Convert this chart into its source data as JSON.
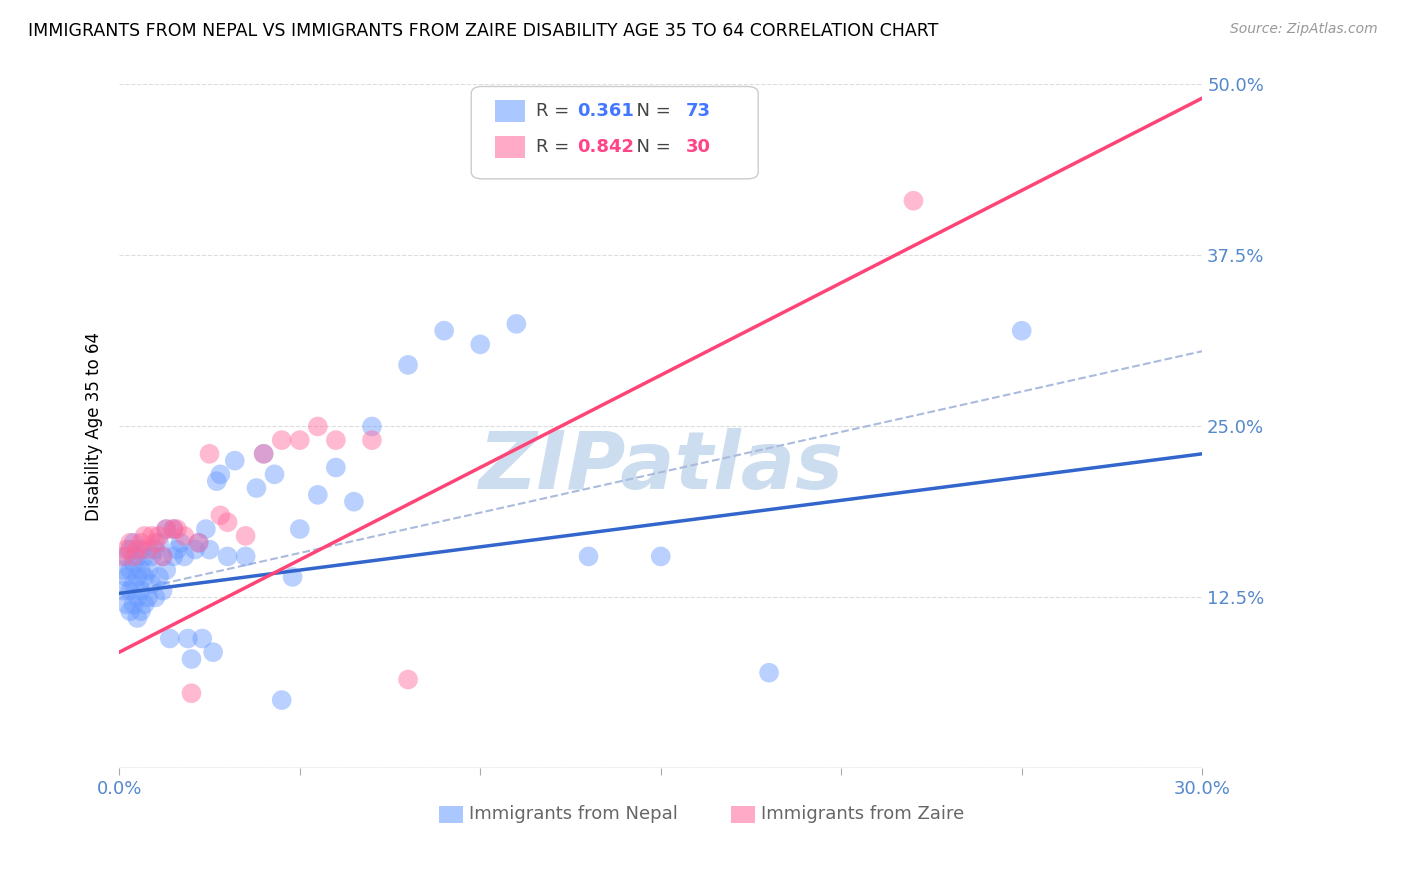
{
  "title": "IMMIGRANTS FROM NEPAL VS IMMIGRANTS FROM ZAIRE DISABILITY AGE 35 TO 64 CORRELATION CHART",
  "source": "Source: ZipAtlas.com",
  "ylabel": "Disability Age 35 to 64",
  "x_axis_label_nepal": "Immigrants from Nepal",
  "x_axis_label_zaire": "Immigrants from Zaire",
  "x_ticks": [
    0.0,
    0.05,
    0.1,
    0.15,
    0.2,
    0.25,
    0.3
  ],
  "x_tick_labels": [
    "0.0%",
    "",
    "",
    "",
    "",
    "",
    "30.0%"
  ],
  "y_ticks": [
    0.0,
    0.125,
    0.25,
    0.375,
    0.5
  ],
  "y_tick_labels_right": [
    "",
    "12.5%",
    "25.0%",
    "37.5%",
    "50.0%"
  ],
  "xlim": [
    0.0,
    0.3
  ],
  "ylim": [
    0.0,
    0.5
  ],
  "nepal_R": 0.361,
  "nepal_N": 73,
  "zaire_R": 0.842,
  "zaire_N": 30,
  "nepal_color": "#6699ff",
  "zaire_color": "#ff6699",
  "nepal_line_color": "#3366cc",
  "zaire_line_color": "#ff4477",
  "dashed_line_color": "#aabbdd",
  "watermark": "ZIPatlas",
  "watermark_color": "#ccddf0",
  "nepal_scatter_x": [
    0.001,
    0.001,
    0.002,
    0.002,
    0.002,
    0.003,
    0.003,
    0.003,
    0.003,
    0.004,
    0.004,
    0.004,
    0.004,
    0.005,
    0.005,
    0.005,
    0.005,
    0.006,
    0.006,
    0.006,
    0.006,
    0.007,
    0.007,
    0.007,
    0.008,
    0.008,
    0.009,
    0.009,
    0.01,
    0.01,
    0.011,
    0.011,
    0.012,
    0.012,
    0.013,
    0.013,
    0.014,
    0.015,
    0.015,
    0.016,
    0.017,
    0.018,
    0.019,
    0.02,
    0.021,
    0.022,
    0.023,
    0.024,
    0.025,
    0.026,
    0.027,
    0.028,
    0.03,
    0.032,
    0.035,
    0.038,
    0.04,
    0.043,
    0.045,
    0.048,
    0.05,
    0.055,
    0.06,
    0.065,
    0.07,
    0.08,
    0.09,
    0.1,
    0.11,
    0.13,
    0.15,
    0.18,
    0.25
  ],
  "nepal_scatter_y": [
    0.13,
    0.145,
    0.12,
    0.14,
    0.155,
    0.115,
    0.13,
    0.145,
    0.16,
    0.12,
    0.135,
    0.15,
    0.165,
    0.11,
    0.125,
    0.14,
    0.155,
    0.115,
    0.13,
    0.145,
    0.16,
    0.12,
    0.14,
    0.155,
    0.125,
    0.145,
    0.135,
    0.155,
    0.125,
    0.16,
    0.14,
    0.165,
    0.13,
    0.155,
    0.145,
    0.175,
    0.095,
    0.155,
    0.175,
    0.16,
    0.165,
    0.155,
    0.095,
    0.08,
    0.16,
    0.165,
    0.095,
    0.175,
    0.16,
    0.085,
    0.21,
    0.215,
    0.155,
    0.225,
    0.155,
    0.205,
    0.23,
    0.215,
    0.05,
    0.14,
    0.175,
    0.2,
    0.22,
    0.195,
    0.25,
    0.295,
    0.32,
    0.31,
    0.325,
    0.155,
    0.155,
    0.07,
    0.32
  ],
  "zaire_scatter_x": [
    0.001,
    0.002,
    0.003,
    0.004,
    0.005,
    0.006,
    0.007,
    0.008,
    0.009,
    0.01,
    0.011,
    0.012,
    0.013,
    0.015,
    0.016,
    0.018,
    0.02,
    0.022,
    0.025,
    0.028,
    0.03,
    0.035,
    0.04,
    0.045,
    0.05,
    0.055,
    0.06,
    0.07,
    0.08,
    0.22
  ],
  "zaire_scatter_y": [
    0.155,
    0.16,
    0.165,
    0.155,
    0.16,
    0.165,
    0.17,
    0.16,
    0.17,
    0.165,
    0.17,
    0.155,
    0.175,
    0.175,
    0.175,
    0.17,
    0.055,
    0.165,
    0.23,
    0.185,
    0.18,
    0.17,
    0.23,
    0.24,
    0.24,
    0.25,
    0.24,
    0.24,
    0.065,
    0.415
  ],
  "nepal_line_x": [
    0.0,
    0.3
  ],
  "nepal_line_y": [
    0.128,
    0.23
  ],
  "zaire_line_x": [
    0.0,
    0.3
  ],
  "zaire_line_y": [
    0.085,
    0.49
  ],
  "diag_line_x": [
    0.0,
    0.3
  ],
  "diag_line_y": [
    0.128,
    0.305
  ]
}
